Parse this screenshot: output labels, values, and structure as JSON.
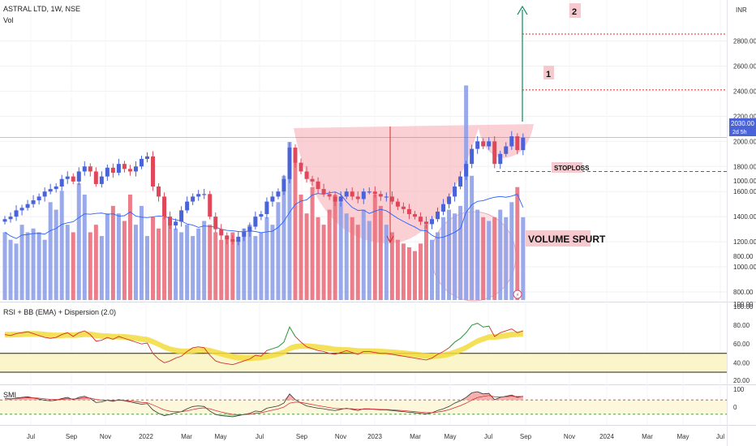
{
  "header": {
    "symbol_line": "ASTRAL LTD, 1W, NSE",
    "vol_label": "Vol",
    "currency": "INR"
  },
  "price_badge": {
    "value": "2030.00",
    "countdown": "2d 5h"
  },
  "annotations": {
    "target_1": "1",
    "target_2": "2",
    "stoploss": "STOPLOSS",
    "volume_spurt": "VOLUME SPURT"
  },
  "indicators": {
    "rsi_title": "RSI + BB (EMA) + Dispersion (2.0)",
    "smi_title": "SMI"
  },
  "colors": {
    "up": "#4a63d9",
    "down": "#e0475a",
    "vol_up": "#8ea0e8",
    "vol_down": "#e9707d",
    "cup": "#f5aab0",
    "arrow_up": "#0a8a5a",
    "arrow_down": "#d32f2f",
    "target_line": "#d32f2f",
    "rsi": "#d32f2f",
    "rsi_band": "#f2dc3c",
    "smi_fill_pos": "#f4a6a6",
    "smi_fill_neg": "#9fe39f"
  },
  "chart_data": [
    {
      "type": "candlestick",
      "title": "ASTRAL LTD, 1W, NSE",
      "y_ticks": [
        800,
        1000,
        1200,
        1400,
        1600,
        1800,
        2000,
        2200,
        2400,
        2600,
        2800
      ],
      "ylim": [
        720,
        2880
      ],
      "x_tick_labels": [
        "Jul",
        "Sep",
        "Nov",
        "2022",
        "Mar",
        "May",
        "Jul",
        "Sep",
        "Nov",
        "2023",
        "Mar",
        "May",
        "Jul",
        "Sep",
        "Nov",
        "2024",
        "Mar",
        "May",
        "Jul"
      ],
      "close_series": [
        1380,
        1400,
        1450,
        1470,
        1500,
        1530,
        1560,
        1600,
        1620,
        1640,
        1700,
        1720,
        1680,
        1760,
        1800,
        1760,
        1660,
        1720,
        1790,
        1750,
        1820,
        1780,
        1760,
        1800,
        1860,
        1880,
        1640,
        1560,
        1400,
        1330,
        1360,
        1450,
        1520,
        1560,
        1580,
        1580,
        1400,
        1300,
        1250,
        1220,
        1200,
        1240,
        1280,
        1320,
        1400,
        1420,
        1520,
        1560,
        1600,
        1700,
        1950,
        1830,
        1760,
        1700,
        1680,
        1620,
        1580,
        1560,
        1520,
        1560,
        1600,
        1560,
        1540,
        1600,
        1600,
        1580,
        1560,
        1560,
        1520,
        1480,
        1460,
        1420,
        1400,
        1360,
        1340,
        1380,
        1440,
        1500,
        1560,
        1640,
        1720,
        1820,
        1940,
        2000,
        1960,
        2000,
        1820,
        1900,
        1960,
        2040,
        1930,
        2030
      ],
      "volume_series": [
        880,
        860,
        850,
        900,
        880,
        890,
        880,
        860,
        960,
        940,
        990,
        900,
        880,
        1010,
        980,
        880,
        900,
        870,
        930,
        950,
        930,
        910,
        980,
        900,
        950,
        870,
        920,
        890,
        920,
        900,
        890,
        880,
        900,
        870,
        890,
        910,
        900,
        880,
        860,
        870,
        880,
        860,
        890,
        900,
        870,
        880,
        920,
        900,
        960,
        1030,
        1120,
        1070,
        980,
        930,
        1000,
        920,
        900,
        940,
        980,
        960,
        930,
        920,
        900,
        940,
        910,
        980,
        950,
        900,
        880,
        860,
        850,
        840,
        830,
        850,
        900,
        860,
        880,
        920,
        940,
        930,
        950,
        1270,
        1030,
        940,
        920,
        910,
        920,
        940,
        920,
        960,
        1000,
        920
      ],
      "targets": [
        2410,
        2855
      ],
      "stoploss_level": 1760,
      "current_price": 2030.0
    },
    {
      "type": "line",
      "title": "RSI + BB (EMA) + Dispersion (2.0)",
      "y_ticks": [
        20,
        40,
        60,
        80,
        100
      ],
      "levels": [
        50,
        30
      ],
      "series": [
        {
          "values": [
            70,
            69,
            71,
            72,
            73,
            71,
            69,
            67,
            66,
            67,
            70,
            72,
            68,
            72,
            74,
            70,
            63,
            64,
            67,
            65,
            68,
            66,
            64,
            62,
            60,
            61,
            50,
            44,
            40,
            42,
            45,
            47,
            52,
            56,
            57,
            56,
            48,
            42,
            40,
            39,
            38,
            40,
            42,
            44,
            48,
            47,
            53,
            55,
            57,
            62,
            78,
            68,
            62,
            57,
            55,
            53,
            52,
            50,
            49,
            51,
            53,
            51,
            49,
            52,
            52,
            51,
            50,
            50,
            49,
            48,
            47,
            46,
            45,
            44,
            43,
            45,
            49,
            52,
            56,
            62,
            66,
            72,
            80,
            82,
            78,
            79,
            68,
            72,
            74,
            76,
            72,
            74
          ]
        }
      ]
    },
    {
      "type": "line",
      "title": "SMI",
      "y_ticks": [
        0,
        100
      ]
    }
  ]
}
